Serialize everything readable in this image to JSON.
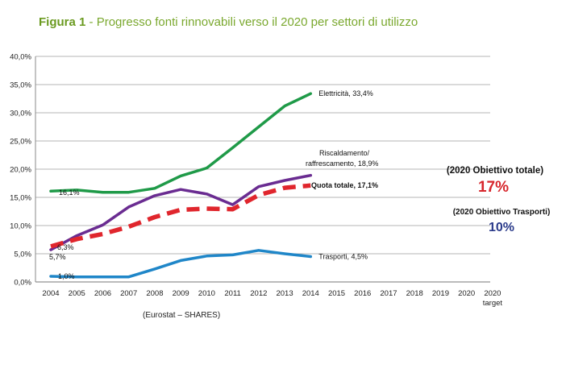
{
  "header": {
    "figure_label": "Figura 1",
    "title_rest": " - Progresso fonti rinnovabili verso il 2020 per settori di utilizzo"
  },
  "chart_data": {
    "type": "line",
    "title": "Figura 1 - Progresso fonti rinnovabili verso il 2020 per settori di utilizzo",
    "x_categories": [
      "2004",
      "2005",
      "2006",
      "2007",
      "2008",
      "2009",
      "2010",
      "2011",
      "2012",
      "2013",
      "2014",
      "2015",
      "2016",
      "2017",
      "2018",
      "2019",
      "2020",
      "2020"
    ],
    "x_sublabels": {
      "17": "target"
    },
    "y_ticks": [
      "0,0%",
      "5,0%",
      "10,0%",
      "15,0%",
      "20,0%",
      "25,0%",
      "30,0%",
      "35,0%",
      "40,0%"
    ],
    "ylim": [
      0,
      40
    ],
    "grid": true,
    "series": [
      {
        "name": "Elettricità, 33,4%",
        "color": "#1f9a48",
        "dashed": false,
        "values": [
          16.1,
          16.3,
          15.9,
          15.9,
          16.6,
          18.8,
          20.2,
          23.8,
          27.5,
          31.2,
          33.4
        ]
      },
      {
        "name": "Riscaldamento/ raffrescamento, 18,9%",
        "label_lines": [
          "Riscaldamento/",
          "raffrescamento, 18,9%"
        ],
        "color": "#6a2c91",
        "dashed": false,
        "values": [
          5.7,
          8.2,
          10.1,
          13.3,
          15.3,
          16.4,
          15.6,
          13.7,
          16.9,
          18.0,
          18.9
        ]
      },
      {
        "name": "Quota totale, 17,1%",
        "color": "#e0262d",
        "dashed": true,
        "values": [
          6.3,
          7.6,
          8.5,
          9.8,
          11.5,
          12.8,
          13.0,
          12.9,
          15.4,
          16.7,
          17.1
        ]
      },
      {
        "name": "Trasporti, 4,5%",
        "color": "#1f86c8",
        "dashed": false,
        "values": [
          1.0,
          0.9,
          0.9,
          0.9,
          2.3,
          3.8,
          4.6,
          4.8,
          5.6,
          5.0,
          4.5
        ]
      }
    ],
    "point_labels": [
      "16,1%",
      "6,3%",
      "5,7%",
      "1,0%"
    ],
    "annotations": {
      "obiettivo_totale_label": "(2020 Obiettivo totale)",
      "obiettivo_totale_value": "17%",
      "obiettivo_trasporti_label": "(2020 Obiettivo Trasporti)",
      "obiettivo_trasporti_value": "10%"
    },
    "source": "(Eurostat – SHARES)"
  }
}
